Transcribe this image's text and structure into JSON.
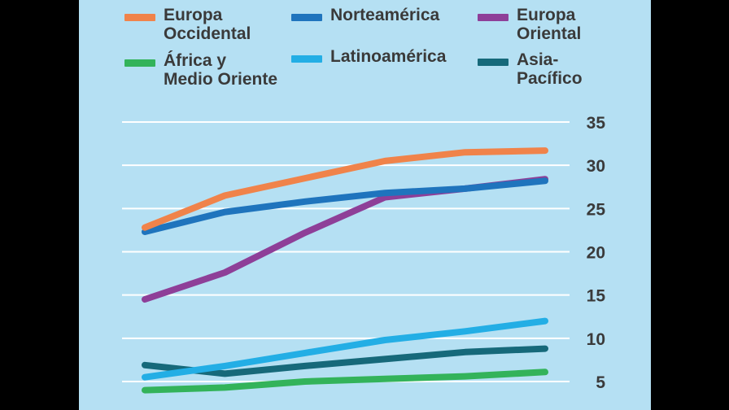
{
  "chart_data": {
    "type": "line",
    "title": "",
    "xlabel": "",
    "ylabel": "",
    "x": [
      1,
      2,
      3,
      4,
      5,
      6
    ],
    "ylim": [
      4,
      35
    ],
    "yticks": [
      5,
      10,
      15,
      20,
      25,
      30,
      35
    ],
    "grid": true,
    "legend_position": "top",
    "series": [
      {
        "name": "Europa\nOccidental",
        "color": "#f0834a",
        "values": [
          22.8,
          26.5,
          28.5,
          30.5,
          31.5,
          31.7
        ]
      },
      {
        "name": "Norteamérica",
        "color": "#1f74bd",
        "values": [
          22.3,
          24.6,
          25.8,
          26.8,
          27.3,
          28.2
        ]
      },
      {
        "name": "Europa\nOriental",
        "color": "#8e3f98",
        "values": [
          14.5,
          17.6,
          22.2,
          26.3,
          27.3,
          28.4
        ]
      },
      {
        "name": "África y\nMedio Oriente",
        "color": "#33b35a",
        "values": [
          4.0,
          4.3,
          5.0,
          5.3,
          5.6,
          6.1
        ]
      },
      {
        "name": "Latinoamérica",
        "color": "#23aee5",
        "values": [
          5.5,
          6.8,
          8.3,
          9.8,
          10.8,
          12.0
        ]
      },
      {
        "name": "Asia-\nPacífico",
        "color": "#16697a",
        "values": [
          6.9,
          5.9,
          6.8,
          7.6,
          8.4,
          8.8
        ]
      }
    ]
  }
}
